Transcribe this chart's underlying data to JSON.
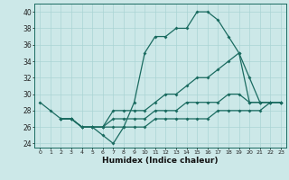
{
  "xlabel": "Humidex (Indice chaleur)",
  "background_color": "#cce8e8",
  "line_color": "#1a6b60",
  "grid_color": "#aad4d4",
  "xlim": [
    -0.5,
    23.5
  ],
  "ylim": [
    23.5,
    41
  ],
  "yticks": [
    24,
    26,
    28,
    30,
    32,
    34,
    36,
    38,
    40
  ],
  "xticks": [
    0,
    1,
    2,
    3,
    4,
    5,
    6,
    7,
    8,
    9,
    10,
    11,
    12,
    13,
    14,
    15,
    16,
    17,
    18,
    19,
    20,
    21,
    22,
    23
  ],
  "line1_x": [
    0,
    1,
    2,
    3,
    4,
    5,
    6,
    7,
    8,
    9,
    10,
    11,
    12,
    13,
    14,
    15,
    16,
    17,
    18,
    19,
    20,
    21,
    22,
    23
  ],
  "line1_y": [
    29,
    28,
    27,
    27,
    26,
    26,
    25,
    24,
    26,
    29,
    35,
    37,
    37,
    38,
    38,
    40,
    40,
    39,
    37,
    35,
    29,
    29,
    29,
    29
  ],
  "line2_x": [
    2,
    3,
    4,
    5,
    6,
    7,
    8,
    9,
    10,
    11,
    12,
    13,
    14,
    15,
    16,
    17,
    18,
    19,
    20,
    21,
    22,
    23
  ],
  "line2_y": [
    27,
    27,
    26,
    26,
    26,
    28,
    28,
    28,
    28,
    29,
    30,
    30,
    31,
    32,
    32,
    33,
    34,
    35,
    32,
    29,
    29,
    29
  ],
  "line3_x": [
    2,
    3,
    4,
    5,
    6,
    7,
    8,
    9,
    10,
    11,
    12,
    13,
    14,
    15,
    16,
    17,
    18,
    19,
    20,
    21,
    22,
    23
  ],
  "line3_y": [
    27,
    27,
    26,
    26,
    26,
    27,
    27,
    27,
    27,
    28,
    28,
    28,
    29,
    29,
    29,
    29,
    30,
    30,
    29,
    29,
    29,
    29
  ],
  "line4_x": [
    2,
    3,
    4,
    5,
    6,
    7,
    8,
    9,
    10,
    11,
    12,
    13,
    14,
    15,
    16,
    17,
    18,
    19,
    20,
    21,
    22,
    23
  ],
  "line4_y": [
    27,
    27,
    26,
    26,
    26,
    26,
    26,
    26,
    26,
    27,
    27,
    27,
    27,
    27,
    27,
    28,
    28,
    28,
    28,
    28,
    29,
    29
  ]
}
